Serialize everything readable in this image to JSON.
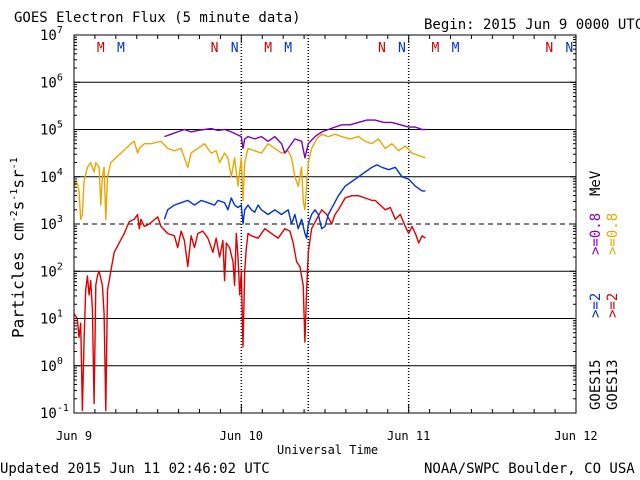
{
  "header": {
    "title": "GOES Electron Flux (5 minute data)",
    "begin": "Begin: 2015 Jun 9 0000 UTC"
  },
  "footer": {
    "updated": "Updated 2015 Jun 11 02:46:02 UTC",
    "source": "NOAA/SWPC Boulder, CO USA"
  },
  "chart_data": {
    "type": "line",
    "title": "GOES Electron Flux (5 minute data)",
    "xlabel": "Universal Time",
    "ylabel": "Particles cm^-2 s^-1 sr^-1",
    "ylabel_parts": {
      "main": "Particles cm",
      "e1": "-2",
      "s": "s",
      "e2": "-1",
      "sr": "sr",
      "e3": "-1"
    },
    "x_unit": "days since Jun 9 0000 UTC",
    "xlim": [
      0,
      3
    ],
    "x_ticks": [
      {
        "x": 0,
        "label": "Jun 9"
      },
      {
        "x": 1,
        "label": "Jun 10"
      },
      {
        "x": 2,
        "label": "Jun 11"
      },
      {
        "x": 3,
        "label": "Jun 12"
      }
    ],
    "yscale": "log",
    "ylim_exp": [
      -1,
      7
    ],
    "y_ticks": [
      {
        "exp": -1,
        "base": "10",
        "sup": "-1"
      },
      {
        "exp": 0,
        "base": "10",
        "sup": "0"
      },
      {
        "exp": 1,
        "base": "10",
        "sup": "1"
      },
      {
        "exp": 2,
        "base": "10",
        "sup": "2"
      },
      {
        "exp": 3,
        "base": "10",
        "sup": "3"
      },
      {
        "exp": 4,
        "base": "10",
        "sup": "4"
      },
      {
        "exp": 5,
        "base": "10",
        "sup": "5"
      },
      {
        "exp": 6,
        "base": "10",
        "sup": "6"
      },
      {
        "exp": 7,
        "base": "10",
        "sup": "7"
      }
    ],
    "threshold_exp": 3,
    "grid": true,
    "markers": [
      {
        "x": 0.16,
        "label": "M",
        "color": "#cc0000"
      },
      {
        "x": 0.28,
        "label": "M",
        "color": "#0033cc"
      },
      {
        "x": 0.84,
        "label": "N",
        "color": "#cc0000"
      },
      {
        "x": 0.96,
        "label": "N",
        "color": "#0033cc"
      },
      {
        "x": 1.16,
        "label": "M",
        "color": "#cc0000"
      },
      {
        "x": 1.28,
        "label": "M",
        "color": "#0033cc"
      },
      {
        "x": 1.84,
        "label": "N",
        "color": "#cc0000"
      },
      {
        "x": 1.96,
        "label": "N",
        "color": "#0033cc"
      },
      {
        "x": 2.16,
        "label": "M",
        "color": "#cc0000"
      },
      {
        "x": 2.28,
        "label": "M",
        "color": "#0033cc"
      },
      {
        "x": 2.84,
        "label": "N",
        "color": "#cc0000"
      },
      {
        "x": 2.96,
        "label": "N",
        "color": "#0033cc"
      }
    ],
    "event_lines_x": [
      1.0,
      1.4,
      2.0
    ],
    "legend": {
      "goes13": "GOES13",
      "goes15": "GOES15",
      "energy_2_r": ">=2",
      "energy_08_r": ">=0.8",
      "energy_2_b": ">=2",
      "energy_08_b": ">=0.8",
      "unit": "MeV"
    },
    "series": [
      {
        "name": "GOES13 >=2 MeV",
        "color": "#e00000",
        "points": [
          [
            0.0,
            1.1
          ],
          [
            0.02,
            1.0
          ],
          [
            0.03,
            0.6
          ],
          [
            0.04,
            0.9
          ],
          [
            0.05,
            -0.95
          ],
          [
            0.06,
            0.5
          ],
          [
            0.07,
            1.6
          ],
          [
            0.08,
            1.9
          ],
          [
            0.09,
            1.5
          ],
          [
            0.1,
            1.8
          ],
          [
            0.11,
            1.2
          ],
          [
            0.12,
            -0.8
          ],
          [
            0.13,
            1.7
          ],
          [
            0.14,
            1.9
          ],
          [
            0.15,
            2.0
          ],
          [
            0.17,
            1.7
          ],
          [
            0.18,
            1.1
          ],
          [
            0.19,
            -0.95
          ],
          [
            0.2,
            1.6
          ],
          [
            0.22,
            2.0
          ],
          [
            0.24,
            2.4
          ],
          [
            0.27,
            2.6
          ],
          [
            0.3,
            2.8
          ],
          [
            0.33,
            3.05
          ],
          [
            0.36,
            3.1
          ],
          [
            0.38,
            3.2
          ],
          [
            0.39,
            2.9
          ],
          [
            0.4,
            3.1
          ],
          [
            0.42,
            2.95
          ],
          [
            0.45,
            3.0
          ],
          [
            0.5,
            3.15
          ],
          [
            0.52,
            2.95
          ],
          [
            0.56,
            2.8
          ],
          [
            0.6,
            2.75
          ],
          [
            0.62,
            2.5
          ],
          [
            0.64,
            2.85
          ],
          [
            0.66,
            2.65
          ],
          [
            0.68,
            2.1
          ],
          [
            0.7,
            2.75
          ],
          [
            0.72,
            2.5
          ],
          [
            0.74,
            2.8
          ],
          [
            0.77,
            2.85
          ],
          [
            0.8,
            2.7
          ],
          [
            0.83,
            2.4
          ],
          [
            0.85,
            2.7
          ],
          [
            0.87,
            2.3
          ],
          [
            0.89,
            2.65
          ],
          [
            0.9,
            1.8
          ],
          [
            0.91,
            2.6
          ],
          [
            0.93,
            2.5
          ],
          [
            0.95,
            2.2
          ],
          [
            0.96,
            1.7
          ],
          [
            0.97,
            2.8
          ],
          [
            0.98,
            2.3
          ],
          [
            0.99,
            1.5
          ],
          [
            1.0,
            2.0
          ],
          [
            1.01,
            0.4
          ],
          [
            1.02,
            2.0
          ],
          [
            1.03,
            2.5
          ],
          [
            1.04,
            2.8
          ],
          [
            1.06,
            2.75
          ],
          [
            1.1,
            2.7
          ],
          [
            1.14,
            2.9
          ],
          [
            1.18,
            2.8
          ],
          [
            1.22,
            2.7
          ],
          [
            1.26,
            2.9
          ],
          [
            1.29,
            2.85
          ],
          [
            1.31,
            2.6
          ],
          [
            1.33,
            2.2
          ],
          [
            1.35,
            2.1
          ],
          [
            1.37,
            1.7
          ],
          [
            1.38,
            0.5
          ],
          [
            1.39,
            1.6
          ],
          [
            1.4,
            2.4
          ],
          [
            1.42,
            2.9
          ],
          [
            1.45,
            3.1
          ],
          [
            1.48,
            3.3
          ],
          [
            1.51,
            3.2
          ],
          [
            1.54,
            3.0
          ],
          [
            1.56,
            3.2
          ],
          [
            1.58,
            3.3
          ],
          [
            1.62,
            3.55
          ],
          [
            1.66,
            3.6
          ],
          [
            1.7,
            3.6
          ],
          [
            1.74,
            3.55
          ],
          [
            1.78,
            3.5
          ],
          [
            1.8,
            3.5
          ],
          [
            1.83,
            3.4
          ],
          [
            1.86,
            3.3
          ],
          [
            1.89,
            3.35
          ],
          [
            1.92,
            3.1
          ],
          [
            1.95,
            3.2
          ],
          [
            1.98,
            2.95
          ],
          [
            2.0,
            2.8
          ],
          [
            2.02,
            2.95
          ],
          [
            2.04,
            2.8
          ],
          [
            2.06,
            2.6
          ],
          [
            2.08,
            2.75
          ],
          [
            2.1,
            2.7
          ]
        ]
      },
      {
        "name": "GOES13 >=0.8 MeV",
        "color": "#e8a800",
        "points": [
          [
            0.0,
            3.8
          ],
          [
            0.01,
            3.9
          ],
          [
            0.02,
            3.85
          ],
          [
            0.03,
            3.7
          ],
          [
            0.04,
            3.1
          ],
          [
            0.05,
            3.2
          ],
          [
            0.06,
            3.9
          ],
          [
            0.08,
            4.2
          ],
          [
            0.1,
            4.3
          ],
          [
            0.12,
            4.1
          ],
          [
            0.13,
            4.3
          ],
          [
            0.15,
            4.2
          ],
          [
            0.16,
            3.4
          ],
          [
            0.17,
            4.0
          ],
          [
            0.18,
            4.2
          ],
          [
            0.19,
            3.1
          ],
          [
            0.2,
            4.0
          ],
          [
            0.22,
            4.3
          ],
          [
            0.25,
            4.4
          ],
          [
            0.28,
            4.5
          ],
          [
            0.31,
            4.6
          ],
          [
            0.34,
            4.7
          ],
          [
            0.36,
            4.75
          ],
          [
            0.38,
            4.5
          ],
          [
            0.39,
            4.6
          ],
          [
            0.42,
            4.7
          ],
          [
            0.46,
            4.7
          ],
          [
            0.52,
            4.75
          ],
          [
            0.56,
            4.6
          ],
          [
            0.6,
            4.55
          ],
          [
            0.64,
            4.6
          ],
          [
            0.66,
            4.4
          ],
          [
            0.68,
            4.2
          ],
          [
            0.7,
            4.5
          ],
          [
            0.74,
            4.6
          ],
          [
            0.78,
            4.7
          ],
          [
            0.82,
            4.5
          ],
          [
            0.85,
            4.55
          ],
          [
            0.87,
            4.3
          ],
          [
            0.9,
            4.5
          ],
          [
            0.92,
            4.4
          ],
          [
            0.94,
            4.0
          ],
          [
            0.96,
            4.4
          ],
          [
            0.98,
            3.8
          ],
          [
            1.0,
            4.4
          ],
          [
            1.01,
            3.5
          ],
          [
            1.02,
            4.3
          ],
          [
            1.04,
            4.6
          ],
          [
            1.08,
            4.55
          ],
          [
            1.12,
            4.5
          ],
          [
            1.16,
            4.7
          ],
          [
            1.2,
            4.6
          ],
          [
            1.24,
            4.5
          ],
          [
            1.28,
            4.55
          ],
          [
            1.3,
            4.4
          ],
          [
            1.32,
            4.0
          ],
          [
            1.34,
            3.8
          ],
          [
            1.36,
            4.2
          ],
          [
            1.37,
            3.5
          ],
          [
            1.38,
            3.3
          ],
          [
            1.39,
            3.8
          ],
          [
            1.4,
            4.3
          ],
          [
            1.42,
            4.6
          ],
          [
            1.45,
            4.8
          ],
          [
            1.48,
            4.9
          ],
          [
            1.52,
            4.85
          ],
          [
            1.56,
            4.9
          ],
          [
            1.6,
            4.85
          ],
          [
            1.65,
            4.8
          ],
          [
            1.7,
            4.85
          ],
          [
            1.74,
            4.75
          ],
          [
            1.78,
            4.7
          ],
          [
            1.82,
            4.8
          ],
          [
            1.86,
            4.6
          ],
          [
            1.9,
            4.7
          ],
          [
            1.94,
            4.55
          ],
          [
            1.98,
            4.65
          ],
          [
            2.02,
            4.5
          ],
          [
            2.06,
            4.45
          ],
          [
            2.1,
            4.4
          ]
        ]
      },
      {
        "name": "GOES15 >=2 MeV",
        "color": "#0033cc",
        "points": [
          [
            0.54,
            3.1
          ],
          [
            0.56,
            3.3
          ],
          [
            0.6,
            3.4
          ],
          [
            0.64,
            3.45
          ],
          [
            0.68,
            3.5
          ],
          [
            0.72,
            3.4
          ],
          [
            0.76,
            3.5
          ],
          [
            0.8,
            3.45
          ],
          [
            0.84,
            3.4
          ],
          [
            0.86,
            3.5
          ],
          [
            0.9,
            3.45
          ],
          [
            0.92,
            3.3
          ],
          [
            0.94,
            3.55
          ],
          [
            0.96,
            3.4
          ],
          [
            0.98,
            3.35
          ],
          [
            1.0,
            3.4
          ],
          [
            1.01,
            3.0
          ],
          [
            1.02,
            3.3
          ],
          [
            1.04,
            3.4
          ],
          [
            1.06,
            3.3
          ],
          [
            1.08,
            3.25
          ],
          [
            1.1,
            3.4
          ],
          [
            1.12,
            3.3
          ],
          [
            1.16,
            3.2
          ],
          [
            1.2,
            3.3
          ],
          [
            1.24,
            3.2
          ],
          [
            1.28,
            3.3
          ],
          [
            1.3,
            3.0
          ],
          [
            1.32,
            3.2
          ],
          [
            1.34,
            2.9
          ],
          [
            1.36,
            3.1
          ],
          [
            1.38,
            2.8
          ],
          [
            1.39,
            2.7
          ],
          [
            1.4,
            3.0
          ],
          [
            1.42,
            3.2
          ],
          [
            1.44,
            3.3
          ],
          [
            1.46,
            3.2
          ],
          [
            1.48,
            2.9
          ],
          [
            1.5,
            2.95
          ],
          [
            1.52,
            3.2
          ],
          [
            1.55,
            3.4
          ],
          [
            1.58,
            3.6
          ],
          [
            1.62,
            3.8
          ],
          [
            1.66,
            3.9
          ],
          [
            1.7,
            4.0
          ],
          [
            1.74,
            4.1
          ],
          [
            1.78,
            4.2
          ],
          [
            1.81,
            4.25
          ],
          [
            1.84,
            4.2
          ],
          [
            1.88,
            4.15
          ],
          [
            1.92,
            4.2
          ],
          [
            1.96,
            4.0
          ],
          [
            2.0,
            3.95
          ],
          [
            2.04,
            3.8
          ],
          [
            2.08,
            3.7
          ],
          [
            2.1,
            3.7
          ]
        ]
      },
      {
        "name": "GOES15 >=0.8 MeV",
        "color": "#7700bb",
        "points": [
          [
            0.54,
            4.85
          ],
          [
            0.58,
            4.9
          ],
          [
            0.62,
            4.95
          ],
          [
            0.66,
            5.0
          ],
          [
            0.7,
            4.95
          ],
          [
            0.74,
            4.98
          ],
          [
            0.78,
            5.0
          ],
          [
            0.82,
            5.02
          ],
          [
            0.86,
            4.98
          ],
          [
            0.9,
            5.0
          ],
          [
            0.94,
            4.95
          ],
          [
            0.97,
            4.9
          ],
          [
            1.0,
            4.85
          ],
          [
            1.01,
            4.6
          ],
          [
            1.02,
            4.8
          ],
          [
            1.04,
            4.85
          ],
          [
            1.08,
            4.8
          ],
          [
            1.12,
            4.85
          ],
          [
            1.16,
            4.75
          ],
          [
            1.2,
            4.85
          ],
          [
            1.24,
            4.7
          ],
          [
            1.26,
            4.5
          ],
          [
            1.28,
            4.6
          ],
          [
            1.32,
            4.8
          ],
          [
            1.36,
            4.75
          ],
          [
            1.38,
            4.4
          ],
          [
            1.4,
            4.7
          ],
          [
            1.44,
            4.85
          ],
          [
            1.48,
            4.95
          ],
          [
            1.52,
            5.0
          ],
          [
            1.56,
            5.05
          ],
          [
            1.6,
            5.1
          ],
          [
            1.65,
            5.1
          ],
          [
            1.7,
            5.15
          ],
          [
            1.75,
            5.2
          ],
          [
            1.8,
            5.2
          ],
          [
            1.85,
            5.15
          ],
          [
            1.9,
            5.15
          ],
          [
            1.95,
            5.1
          ],
          [
            2.0,
            5.05
          ],
          [
            2.04,
            5.05
          ],
          [
            2.08,
            5.0
          ],
          [
            2.1,
            5.0
          ]
        ]
      }
    ]
  }
}
